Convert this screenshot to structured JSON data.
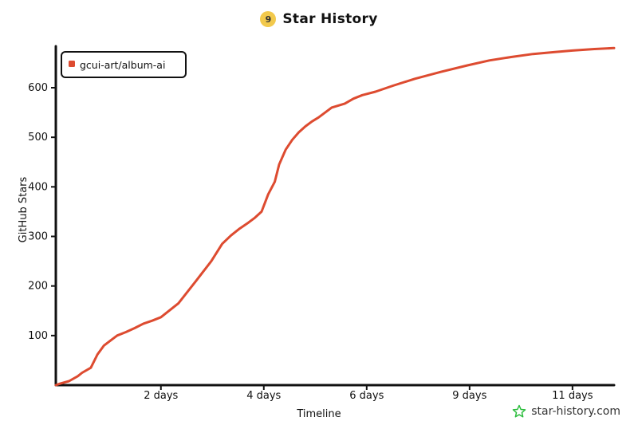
{
  "header": {
    "logo_text": "9",
    "title": "Star History"
  },
  "watermark": {
    "text": "star-history.com",
    "icon": "star-icon",
    "icon_color": "#2bbd3c"
  },
  "chart_data": {
    "type": "line",
    "title": "Star History",
    "xlabel": "Timeline",
    "ylabel": "GitHub Stars",
    "x_tick_labels": [
      "2 days",
      "4 days",
      "6 days",
      "9 days",
      "11 days"
    ],
    "y_ticks": [
      100,
      200,
      300,
      400,
      500,
      600
    ],
    "ylim": [
      0,
      680
    ],
    "grid": false,
    "legend_position": "top-left",
    "series": [
      {
        "name": "gcui-art/album-ai",
        "color": "#dd4b30",
        "x_days": [
          0,
          0.1,
          0.3,
          0.5,
          0.6,
          0.8,
          0.95,
          1.1,
          1.25,
          1.4,
          1.6,
          1.8,
          2.0,
          2.2,
          2.4,
          2.8,
          3.2,
          3.55,
          3.8,
          4.0,
          4.2,
          4.4,
          4.55,
          4.7,
          4.85,
          5.0,
          5.1,
          5.25,
          5.4,
          5.55,
          5.7,
          5.85,
          6.0,
          6.3,
          6.6,
          6.8,
          7.0,
          7.3,
          7.7,
          8.2,
          8.8,
          9.4,
          9.9,
          10.4,
          10.9,
          11.4,
          11.8,
          12.3,
          12.75
        ],
        "values": [
          0,
          3,
          8,
          18,
          25,
          35,
          62,
          80,
          90,
          100,
          107,
          115,
          124,
          130,
          137,
          165,
          210,
          250,
          285,
          302,
          316,
          328,
          338,
          350,
          385,
          410,
          445,
          475,
          495,
          510,
          522,
          532,
          540,
          560,
          568,
          578,
          585,
          592,
          604,
          618,
          632,
          645,
          655,
          662,
          668,
          672,
          675,
          678,
          680
        ]
      }
    ]
  }
}
